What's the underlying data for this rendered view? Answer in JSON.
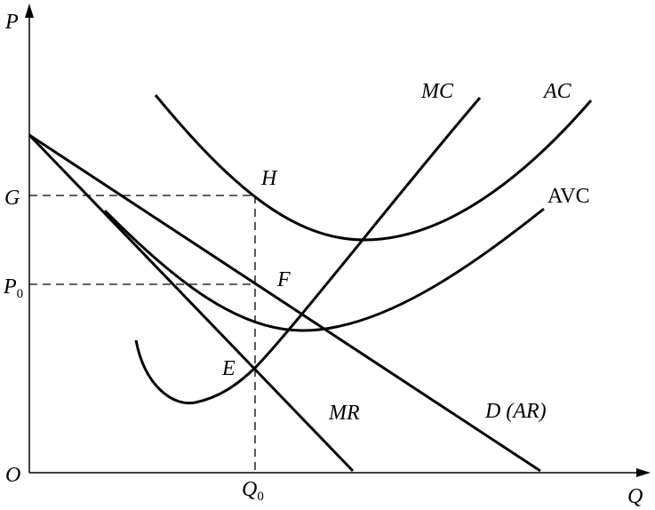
{
  "axes": {
    "y_label": "P",
    "x_label": "Q",
    "origin": "O"
  },
  "levels": {
    "g": "G",
    "p0": {
      "main": "P",
      "sub": "0"
    },
    "q0": {
      "main": "Q",
      "sub": "0"
    }
  },
  "points": {
    "h": "H",
    "f": "F",
    "e": "E"
  },
  "curves": {
    "mc": "MC",
    "ac": "AC",
    "avc": "AVC",
    "mr": "MR",
    "d": "D (AR)"
  }
}
